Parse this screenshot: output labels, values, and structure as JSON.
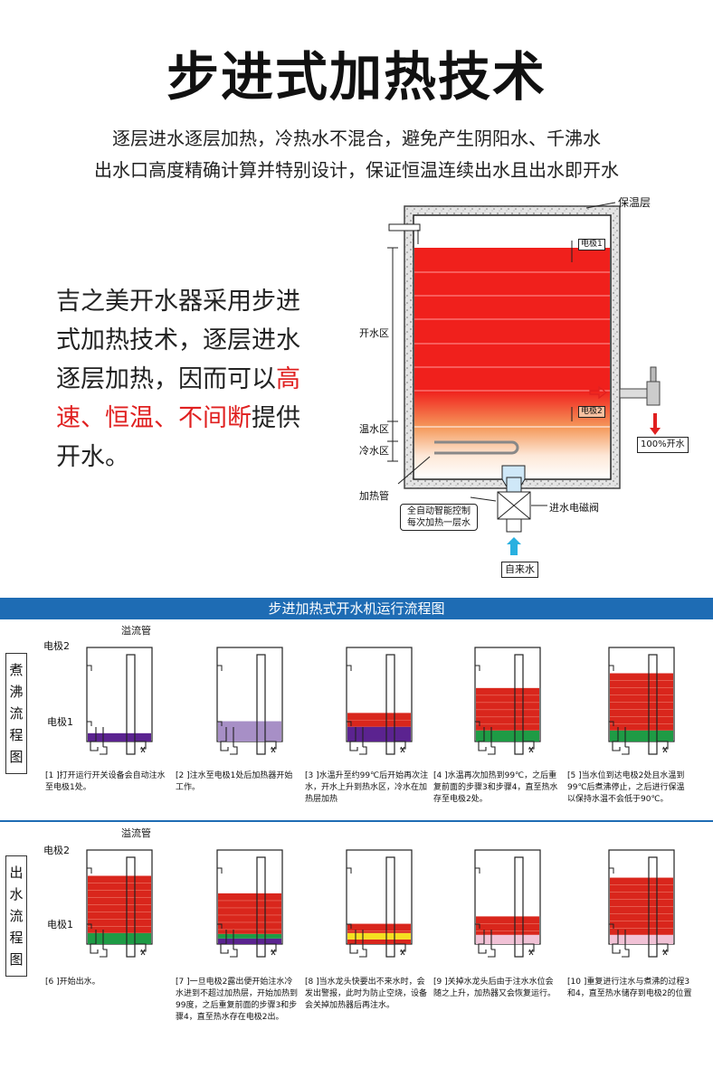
{
  "title": "步进式加热技术",
  "subtitle": [
    "逐层进水逐层加热，冷热水不混合，避免产生阴阳水、千沸水",
    "出水口高度精确计算并特别设计，保证恒温连续出水且出水即开水"
  ],
  "intro": {
    "before": "吉之美开水器采用步进式加热技术，逐层进水逐层加热，因而可以",
    "highlight": "高速、恒温、不间断",
    "after": "提供开水。"
  },
  "diagram": {
    "insulation": "保温层",
    "electrode1": "电极1",
    "electrode2": "电极2",
    "zone_boil": "开水区",
    "zone_warm": "温水区",
    "zone_cold": "冷水区",
    "heater": "加热管",
    "control": [
      "全自动智能控制",
      "每次加热一层水"
    ],
    "valve": "进水电磁阀",
    "inlet": "自来水",
    "outlet": "100%开水",
    "colors": {
      "hot": "#f0201c",
      "warm": "#f5a060",
      "cold": "#ffffff",
      "speckle": "#b0b0b0"
    }
  },
  "flow": {
    "banner": "步进加热式开水机运行流程图",
    "row1_label": [
      "煮",
      "沸",
      "流",
      "程",
      "图"
    ],
    "row2_label": [
      "出",
      "水",
      "流",
      "程",
      "图"
    ],
    "overflow_label": "溢流管",
    "electrode2_label": "电极2",
    "electrode1_label": "电极1",
    "row1": [
      {
        "caption": "[1 ]打开运行开关设备会自动注水至电极1处。",
        "levels": [
          {
            "color": "#5b2390",
            "h": 0.09
          }
        ]
      },
      {
        "caption": "[2 ]注水至电极1处后加热器开始工作。",
        "levels": [
          {
            "color": "#a78fc6",
            "h": 0.22
          }
        ]
      },
      {
        "caption": "[3 ]水温升至约99℃后开始再次注水，开水上升到热水区，冷水在加热层加热",
        "levels": [
          {
            "color": "#5b2390",
            "h": 0.16
          },
          {
            "color": "#d9261c",
            "h": 0.15
          }
        ]
      },
      {
        "caption": "[4 ]水温再次加热到99℃，之后重复前面的步骤3和步骤4，直至热水存至电极2处。",
        "levels": [
          {
            "color": "#1e9b45",
            "h": 0.12
          },
          {
            "color": "#d9261c",
            "h": 0.46
          }
        ]
      },
      {
        "caption": "[5 ]当水位到达电极2处且水温到99℃后煮沸停止，之后进行保温以保持水温不会低于90℃。",
        "levels": [
          {
            "color": "#1e9b45",
            "h": 0.12
          },
          {
            "color": "#d9261c",
            "h": 0.62
          }
        ]
      }
    ],
    "row2": [
      {
        "caption": "[6 ]开始出水。",
        "levels": [
          {
            "color": "#1e9b45",
            "h": 0.12
          },
          {
            "color": "#d9261c",
            "h": 0.62
          }
        ]
      },
      {
        "caption": "[7 ]一旦电极2露出便开始注水冷水进到不超过加热层，开始加热到99度，之后重复前面的步骤3和步骤4，直至热水存在电极2出。",
        "levels": [
          {
            "color": "#5b2390",
            "h": 0.06
          },
          {
            "color": "#1e9b45",
            "h": 0.05
          },
          {
            "color": "#d9261c",
            "h": 0.44
          }
        ]
      },
      {
        "caption": "[8 ]当水龙头快要出不来水时，会发出警报，此时为防止空烧，设备会关掉加热器后再注水。",
        "levels": [
          {
            "color": "#d9261c",
            "h": 0.05
          },
          {
            "color": "#f5e020",
            "h": 0.07
          },
          {
            "color": "#d9261c",
            "h": 0.1
          }
        ]
      },
      {
        "caption": "[9 ]关掉水龙头后由于注水水位会随之上升，加热器又会恢复运行。",
        "levels": [
          {
            "color": "#f1c2d6",
            "h": 0.1
          },
          {
            "color": "#d9261c",
            "h": 0.2
          }
        ]
      },
      {
        "caption": "[10 ]重复进行注水与煮沸的过程3和4，直至热水储存到电极2的位置",
        "levels": [
          {
            "color": "#f1c2d6",
            "h": 0.1
          },
          {
            "color": "#d9261c",
            "h": 0.62
          }
        ]
      }
    ]
  }
}
